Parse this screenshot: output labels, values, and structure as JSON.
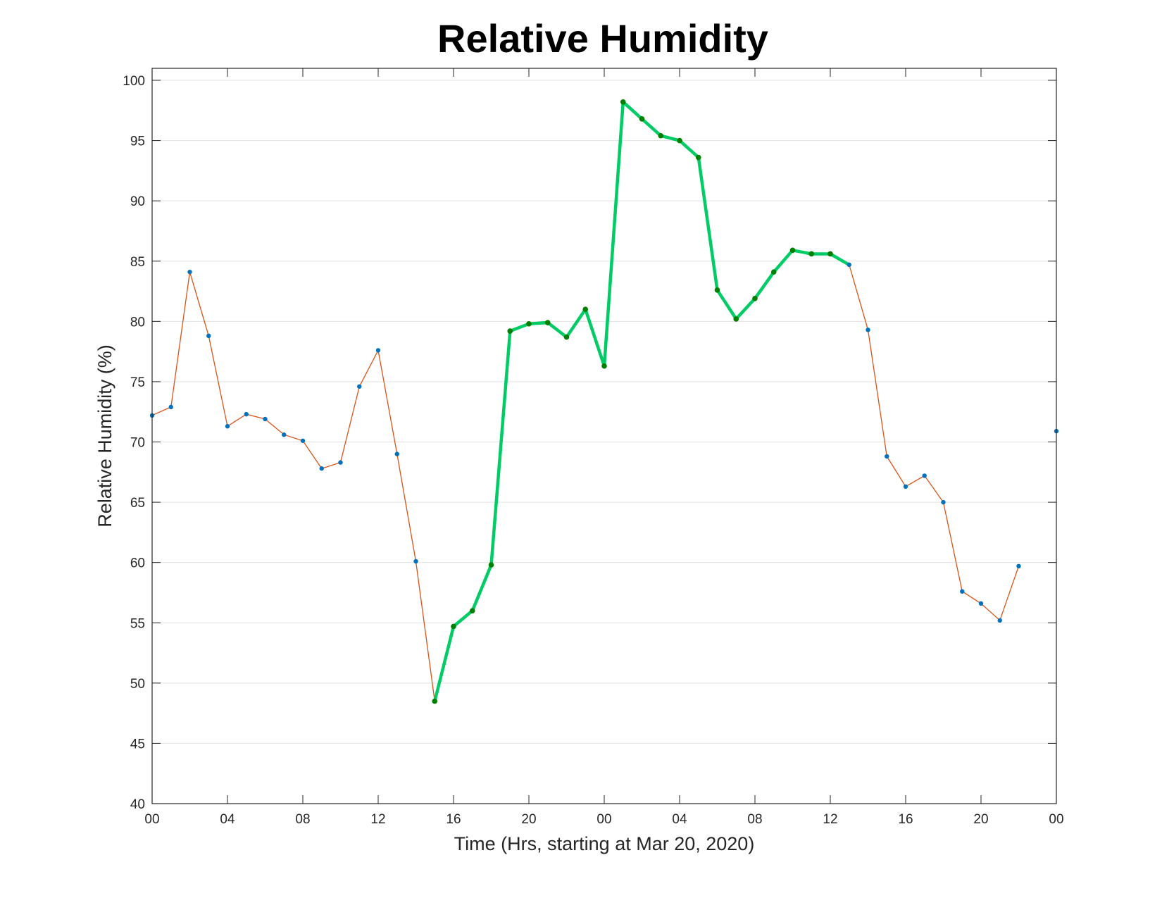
{
  "chart_data": {
    "type": "line",
    "title": "Relative Humidity",
    "xlabel": "Time (Hrs, starting at Mar 20, 2020)",
    "ylabel": "Relative Humidity (%)",
    "ylim": [
      40,
      100
    ],
    "xlim_hours": [
      0,
      48
    ],
    "grid": "horizontal",
    "x_tick_labels": [
      "00",
      "04",
      "08",
      "12",
      "16",
      "20",
      "00",
      "04",
      "08",
      "12",
      "16",
      "20",
      "00"
    ],
    "y_tick_labels": [
      "40",
      "45",
      "50",
      "55",
      "60",
      "65",
      "70",
      "75",
      "80",
      "85",
      "90",
      "95",
      "100"
    ],
    "x_hours": [
      0,
      1,
      2,
      3,
      4,
      5,
      6,
      7,
      8,
      9,
      10,
      11,
      12,
      13,
      14,
      15,
      16,
      17,
      18,
      19,
      20,
      21,
      22,
      23,
      24,
      25,
      26,
      27,
      28,
      29,
      30,
      31,
      32,
      33,
      34,
      35,
      36,
      37,
      38,
      39,
      40,
      41,
      42,
      43,
      44,
      45,
      46,
      47,
      48
    ],
    "series": [
      {
        "values": [
          72.2,
          72.9,
          84.1,
          78.8,
          71.3,
          72.3,
          71.9,
          70.6,
          70.1,
          67.8,
          68.3,
          74.6,
          77.6,
          69.0,
          60.1,
          48.5,
          54.7,
          56.0,
          59.8,
          79.2,
          79.8,
          79.9,
          78.7,
          81.0,
          76.3,
          98.2,
          96.8,
          95.4,
          95.0,
          93.6,
          82.6,
          80.2,
          81.9,
          84.1,
          85.9,
          85.6,
          85.6,
          84.7,
          79.3,
          68.8,
          66.3,
          67.2,
          65.0,
          57.6,
          56.6,
          55.2,
          59.7,
          null,
          70.9
        ],
        "color": "#d95319",
        "marker_color": "#0072bd"
      },
      {
        "x_range": [
          15,
          37
        ],
        "color": "#00cc66",
        "marker_color": "#007f00"
      }
    ]
  }
}
